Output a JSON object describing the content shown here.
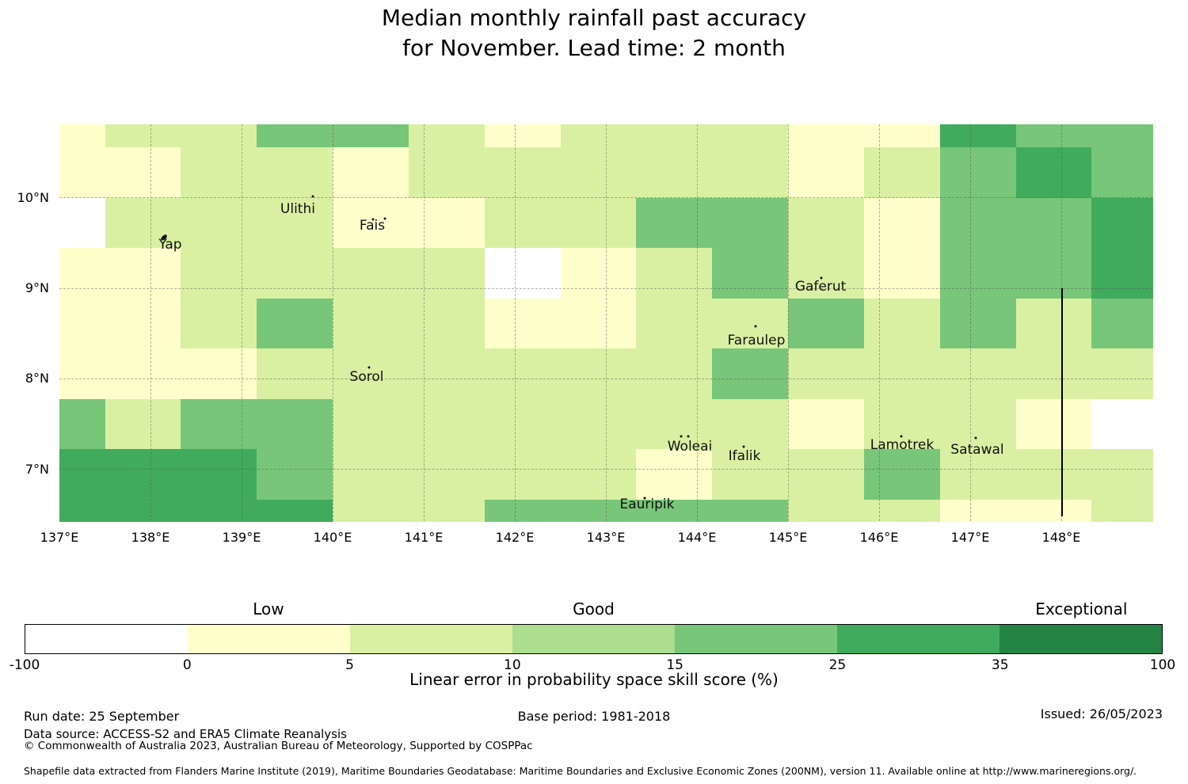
{
  "title": {
    "line1": "Median monthly rainfall past accuracy",
    "line2": "for November. Lead time: 2 month"
  },
  "colorbar": {
    "axis_label": "Linear error in probability space skill score (%)",
    "tick_labels": [
      "-100",
      "0",
      "5",
      "10",
      "15",
      "25",
      "35",
      "100"
    ],
    "quality_labels": [
      {
        "text": "Low",
        "segment_index": 1
      },
      {
        "text": "Good",
        "segment_index": 3
      },
      {
        "text": "Exceptional",
        "segment_index": 6
      }
    ]
  },
  "footer": {
    "run_date": "Run date: 25 September",
    "base_period": "Base period: 1981-2018",
    "issued": "Issued: 26/05/2023",
    "data_source": "Data source: ACCESS-S2 and ERA5 Climate Reanalysis",
    "copyright": "© Commonwealth of Australia 2023, Australian Bureau of Meteorology, Supported by COSPPac",
    "shapefile_note": "Shapefile data extracted from Flanders Marine Institute (2019), Maritime Boundaries Geodatabase: Maritime Boundaries and Exclusive Economic Zones (200NM), version 11. Available online at http://www.marineregions.org/."
  },
  "chart_data": {
    "type": "heatmap",
    "title": "Median monthly rainfall past accuracy for November. Lead time: 2 month",
    "colorbar_label": "Linear error in probability space skill score (%)",
    "bin_edges": [
      -100,
      0,
      5,
      10,
      15,
      25,
      35,
      100
    ],
    "bin_colors": [
      "#ffffff",
      "#ffffcc",
      "#d9f0a3",
      "#addd8e",
      "#78c679",
      "#41ab5d",
      "#238443"
    ],
    "bin_quality": {
      "Low": "0 to 5",
      "Good": "10 to 15",
      "Exceptional": "35 to 100"
    },
    "legend_position": "bottom",
    "grid_on": true,
    "lon_range": [
      137.0,
      149.0
    ],
    "lat_range": [
      6.43,
      10.81
    ],
    "lon_cell_edges": [
      137.0,
      137.5,
      138.333,
      139.167,
      140.0,
      140.833,
      141.667,
      142.5,
      143.333,
      144.167,
      145.0,
      145.833,
      146.667,
      147.5,
      148.333,
      149.0
    ],
    "lat_cell_edges": [
      10.81,
      10.556,
      10.0,
      9.444,
      8.889,
      8.333,
      7.778,
      7.222,
      6.667,
      6.43
    ],
    "cell_bin_index": [
      [
        1,
        2,
        2,
        4,
        4,
        2,
        1,
        2,
        2,
        2,
        1,
        1,
        5,
        4,
        4
      ],
      [
        1,
        1,
        2,
        2,
        1,
        2,
        2,
        2,
        2,
        2,
        1,
        2,
        4,
        5,
        4
      ],
      [
        0,
        2,
        2,
        2,
        1,
        1,
        2,
        2,
        4,
        4,
        2,
        1,
        4,
        4,
        5
      ],
      [
        1,
        1,
        2,
        2,
        2,
        2,
        0,
        1,
        2,
        4,
        2,
        1,
        4,
        4,
        5
      ],
      [
        1,
        1,
        2,
        4,
        2,
        2,
        1,
        1,
        2,
        2,
        4,
        2,
        4,
        2,
        4
      ],
      [
        1,
        1,
        1,
        2,
        2,
        2,
        2,
        2,
        2,
        4,
        2,
        2,
        2,
        2,
        2
      ],
      [
        4,
        2,
        4,
        4,
        2,
        2,
        2,
        2,
        2,
        2,
        1,
        2,
        2,
        1,
        0
      ],
      [
        5,
        5,
        5,
        4,
        2,
        2,
        2,
        2,
        1,
        2,
        2,
        4,
        2,
        2,
        2
      ],
      [
        5,
        5,
        5,
        5,
        2,
        2,
        4,
        4,
        4,
        4,
        2,
        2,
        1,
        1,
        2
      ]
    ],
    "x_ticks": [
      {
        "label": "137°E",
        "lon": 137
      },
      {
        "label": "138°E",
        "lon": 138
      },
      {
        "label": "139°E",
        "lon": 139
      },
      {
        "label": "140°E",
        "lon": 140
      },
      {
        "label": "141°E",
        "lon": 141
      },
      {
        "label": "142°E",
        "lon": 142
      },
      {
        "label": "143°E",
        "lon": 143
      },
      {
        "label": "144°E",
        "lon": 144
      },
      {
        "label": "145°E",
        "lon": 145
      },
      {
        "label": "146°E",
        "lon": 146
      },
      {
        "label": "147°E",
        "lon": 147
      },
      {
        "label": "148°E",
        "lon": 148
      }
    ],
    "y_ticks": [
      {
        "label": "10°N",
        "lat": 10
      },
      {
        "label": "9°N",
        "lat": 9
      },
      {
        "label": "8°N",
        "lat": 8
      },
      {
        "label": "7°N",
        "lat": 7
      }
    ],
    "grid_lons": [
      138,
      139,
      140,
      141,
      142,
      143,
      144,
      145,
      146,
      147,
      148
    ],
    "grid_lats": [
      7,
      8,
      9,
      10
    ],
    "islands": [
      {
        "name": "Yap",
        "lon": 138.217,
        "lat": 9.485,
        "marker": "blob",
        "dots": [
          [
            138.148,
            9.564
          ]
        ]
      },
      {
        "name": "Ulithi",
        "lon": 139.617,
        "lat": 9.878,
        "dots": [
          [
            139.783,
            10.017
          ]
        ]
      },
      {
        "name": "Fais",
        "lon": 140.435,
        "lat": 9.695,
        "dots": [
          [
            140.443,
            9.764
          ],
          [
            140.574,
            9.773
          ]
        ]
      },
      {
        "name": "Sorol",
        "lon": 140.374,
        "lat": 8.019,
        "dots": [
          [
            140.4,
            8.124
          ]
        ]
      },
      {
        "name": "Gaferut",
        "lon": 145.357,
        "lat": 9.014,
        "dots": [
          [
            145.365,
            9.11
          ]
        ]
      },
      {
        "name": "Faraulep",
        "lon": 144.652,
        "lat": 8.42,
        "dots": [
          [
            144.643,
            8.577
          ]
        ]
      },
      {
        "name": "Woleai",
        "lon": 143.922,
        "lat": 7.251,
        "dots": [
          [
            143.826,
            7.364
          ],
          [
            143.904,
            7.364
          ]
        ]
      },
      {
        "name": "Ifalik",
        "lon": 144.522,
        "lat": 7.146,
        "dots": [
          [
            144.513,
            7.251
          ]
        ]
      },
      {
        "name": "Eauripik",
        "lon": 143.452,
        "lat": 6.614,
        "dots": [
          [
            143.426,
            6.684
          ]
        ]
      },
      {
        "name": "Lamotrek",
        "lon": 146.252,
        "lat": 7.268,
        "dots": [
          [
            146.243,
            7.364
          ]
        ]
      },
      {
        "name": "Satawal",
        "lon": 147.078,
        "lat": 7.216,
        "dots": [
          [
            147.061,
            7.347
          ]
        ]
      }
    ],
    "eez_line": {
      "lon": 148.005,
      "lat_top": 9.0,
      "lat_bottom": 6.48
    }
  }
}
